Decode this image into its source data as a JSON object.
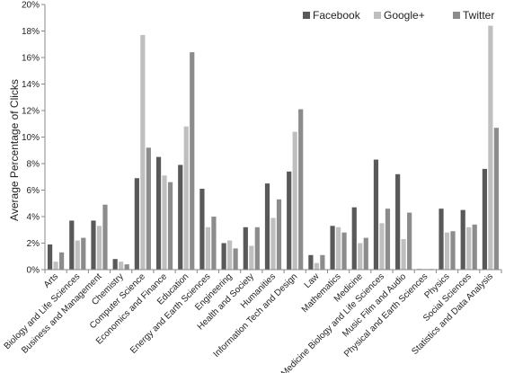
{
  "chart_data": {
    "type": "bar",
    "title": "",
    "xlabel": "",
    "ylabel": "Average Percentage of Clicks",
    "ylim": [
      0,
      20
    ],
    "yticks": [
      "0%",
      "2%",
      "4%",
      "6%",
      "8%",
      "10%",
      "12%",
      "14%",
      "16%",
      "18%",
      "20%"
    ],
    "grid": false,
    "legend_position": "top-right",
    "categories": [
      "Arts",
      "Biology and Life Sciences",
      "Business and Management",
      "Chemistry",
      "Computer Science",
      "Economics and Finance",
      "Education",
      "Energy and Earth Sciences",
      "Engineering",
      "Health and Society",
      "Humanities",
      "Information  Tech  and  Design",
      "Law",
      "Mathematics",
      "Medicine",
      "Medicine Biology and Life Sciences",
      "Music  Film  and  Audio",
      "Physical and Earth Sciences",
      "Physics",
      "Social Sciences",
      "Statistics and Data Analysis"
    ],
    "series": [
      {
        "name": "Facebook",
        "color": "#595959",
        "values": [
          1.9,
          3.7,
          3.7,
          0.8,
          6.9,
          8.5,
          7.9,
          6.1,
          2.0,
          3.2,
          6.5,
          7.4,
          1.1,
          3.3,
          4.7,
          8.3,
          7.2,
          0.05,
          4.6,
          4.5,
          7.6
        ]
      },
      {
        "name": "Google+",
        "color": "#bfbfbf",
        "values": [
          0.6,
          2.2,
          3.3,
          0.6,
          17.7,
          7.1,
          10.8,
          3.2,
          2.2,
          1.8,
          3.9,
          10.4,
          0.5,
          3.2,
          2.0,
          3.5,
          2.3,
          0.05,
          2.8,
          3.2,
          18.4
        ]
      },
      {
        "name": "Twitter",
        "color": "#8c8c8c",
        "values": [
          1.3,
          2.4,
          4.9,
          0.4,
          9.2,
          6.6,
          16.4,
          4.0,
          1.6,
          3.2,
          5.3,
          12.1,
          1.1,
          2.8,
          2.4,
          4.6,
          4.3,
          0.05,
          2.9,
          3.4,
          10.7
        ]
      }
    ]
  }
}
